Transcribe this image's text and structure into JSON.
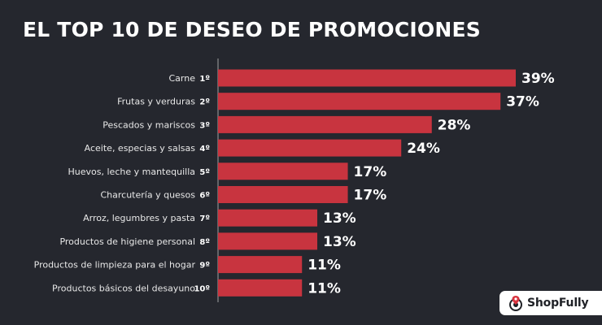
{
  "title": "EL TOP 10 DE DESEO DE PROMOCIONES",
  "brand": {
    "name": "ShopFully",
    "icon": "shopfully-logo-icon"
  },
  "colors": {
    "background": "#25272e",
    "bar": "#c8343f",
    "axis": "#8a8c90",
    "text": "#ffffff"
  },
  "chart_data": {
    "type": "bar",
    "orientation": "horizontal",
    "categories": [
      "Carne",
      "Frutas y verduras",
      "Pescados y mariscos",
      "Aceite, especias y salsas",
      "Huevos, leche y mantequilla",
      "Charcutería y quesos",
      "Arroz, legumbres y pasta",
      "Productos de higiene personal",
      "Productos de limpieza para el hogar",
      "Productos básicos del desayuno"
    ],
    "ranks": [
      "1º",
      "2º",
      "3º",
      "4º",
      "5º",
      "6º",
      "7º",
      "8º",
      "9º",
      "10º"
    ],
    "values": [
      39,
      37,
      28,
      24,
      17,
      17,
      13,
      13,
      11,
      11
    ],
    "value_labels": [
      "39%",
      "37%",
      "28%",
      "24%",
      "17%",
      "17%",
      "13%",
      "13%",
      "11%",
      "11%"
    ],
    "unit": "%",
    "xlim": [
      0,
      40
    ],
    "grid": false,
    "legend": "none"
  }
}
